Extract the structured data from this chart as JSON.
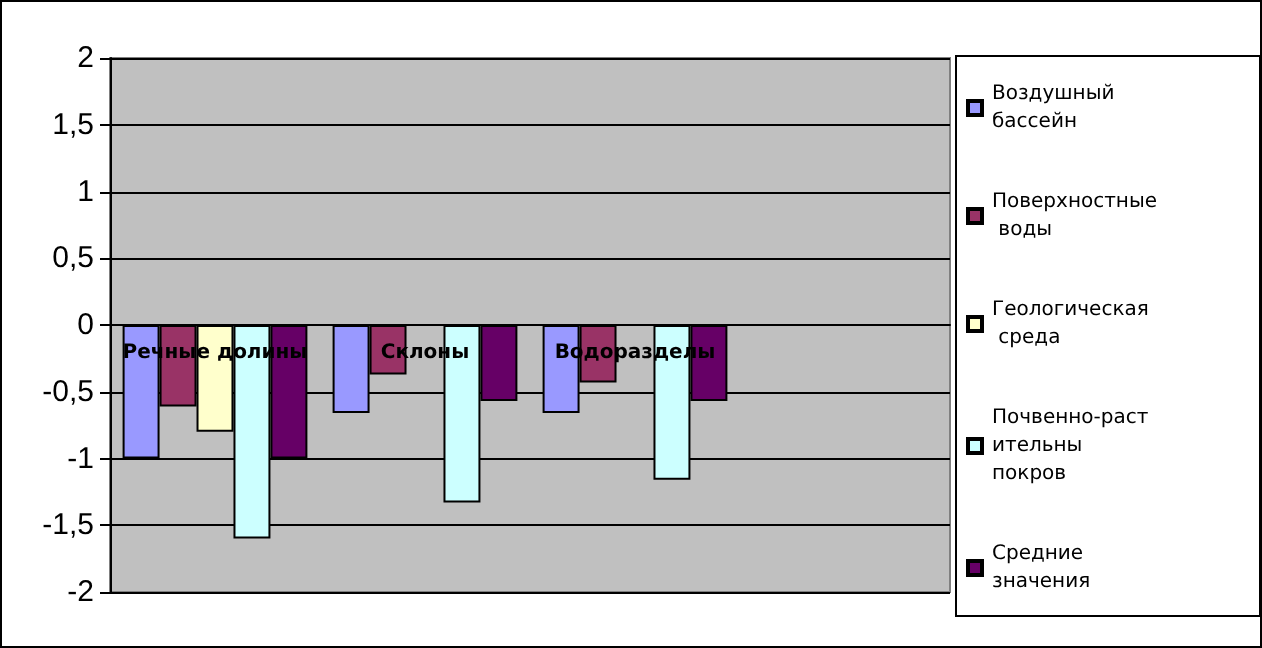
{
  "chart_data": {
    "type": "bar",
    "categories": [
      "Речные долины",
      "Склоны",
      "Водоразделы",
      null
    ],
    "series": [
      {
        "name": "Воздушный бассейн",
        "color": "#9999ff",
        "values": [
          -1,
          -0.66,
          -0.66,
          null
        ]
      },
      {
        "name": "Поверхностные воды",
        "color": "#993366",
        "values": [
          -0.61,
          -0.37,
          -0.43,
          null
        ]
      },
      {
        "name": "Геологическая среда",
        "color": "#ffffcc",
        "values": [
          -0.8,
          null,
          null,
          null
        ]
      },
      {
        "name": "Почвенно-растительны покров",
        "color": "#ccffff",
        "values": [
          -1.6,
          -1.33,
          -1.16,
          null
        ]
      },
      {
        "name": "Средние значения",
        "color": "#660066",
        "values": [
          -1,
          -0.57,
          -0.57,
          null
        ]
      }
    ],
    "ylim": [
      -2,
      2
    ],
    "yticks": [
      -2,
      {
        "value": -1.5,
        "label": "-1,5"
      },
      -1,
      {
        "value": -0.5,
        "label": "-0,5"
      },
      0,
      {
        "value": 0.5,
        "label": "0,5"
      },
      1,
      {
        "value": 1.5,
        "label": "1,5"
      },
      2
    ],
    "grid": "y",
    "legend": "right"
  }
}
